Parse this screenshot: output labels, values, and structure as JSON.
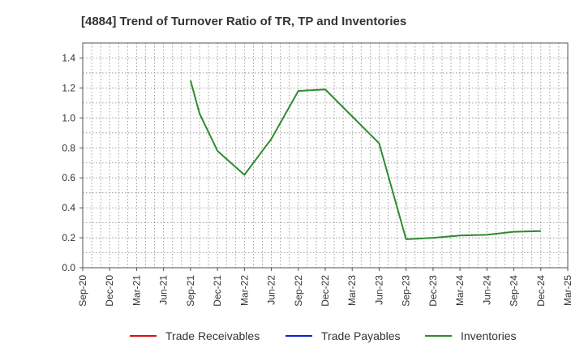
{
  "chart_data": {
    "type": "line",
    "title": "[4884]  Trend of Turnover Ratio of TR, TP and Inventories",
    "xlabel": "",
    "ylabel": "",
    "ylim": [
      0,
      1.5
    ],
    "yticks": [
      "0.0",
      "0.2",
      "0.4",
      "0.6",
      "0.8",
      "1.0",
      "1.2",
      "1.4"
    ],
    "ytick_values": [
      0,
      0.2,
      0.4,
      0.6,
      0.8,
      1.0,
      1.2,
      1.4
    ],
    "x_categories": [
      "Sep-20",
      "Dec-20",
      "Mar-21",
      "Jun-21",
      "Sep-21",
      "Dec-21",
      "Mar-22",
      "Jun-22",
      "Sep-22",
      "Dec-22",
      "Mar-23",
      "Jun-23",
      "Sep-23",
      "Dec-23",
      "Mar-24",
      "Jun-24",
      "Sep-24",
      "Dec-24",
      "Mar-25"
    ],
    "grid": true,
    "legend_position": "bottom",
    "series": [
      {
        "name": "Trade Receivables",
        "color": "#dd1111",
        "values": []
      },
      {
        "name": "Trade Payables",
        "color": "#1122cc",
        "values": []
      },
      {
        "name": "Inventories",
        "color": "#2e8b2e",
        "points": [
          {
            "x": "Sep-21",
            "y": 1.25
          },
          {
            "x": "Oct-21",
            "y": 1.03
          },
          {
            "x": "Dec-21",
            "y": 0.78
          },
          {
            "x": "Mar-22",
            "y": 0.62
          },
          {
            "x": "Jun-22",
            "y": 0.86
          },
          {
            "x": "Sep-22",
            "y": 1.18
          },
          {
            "x": "Dec-22",
            "y": 1.19
          },
          {
            "x": "Mar-23",
            "y": 1.01
          },
          {
            "x": "Jun-23",
            "y": 0.83
          },
          {
            "x": "Sep-23",
            "y": 0.19
          },
          {
            "x": "Dec-23",
            "y": 0.2
          },
          {
            "x": "Mar-24",
            "y": 0.215
          },
          {
            "x": "Jun-24",
            "y": 0.22
          },
          {
            "x": "Sep-24",
            "y": 0.24
          },
          {
            "x": "Dec-24",
            "y": 0.245
          }
        ]
      }
    ]
  }
}
